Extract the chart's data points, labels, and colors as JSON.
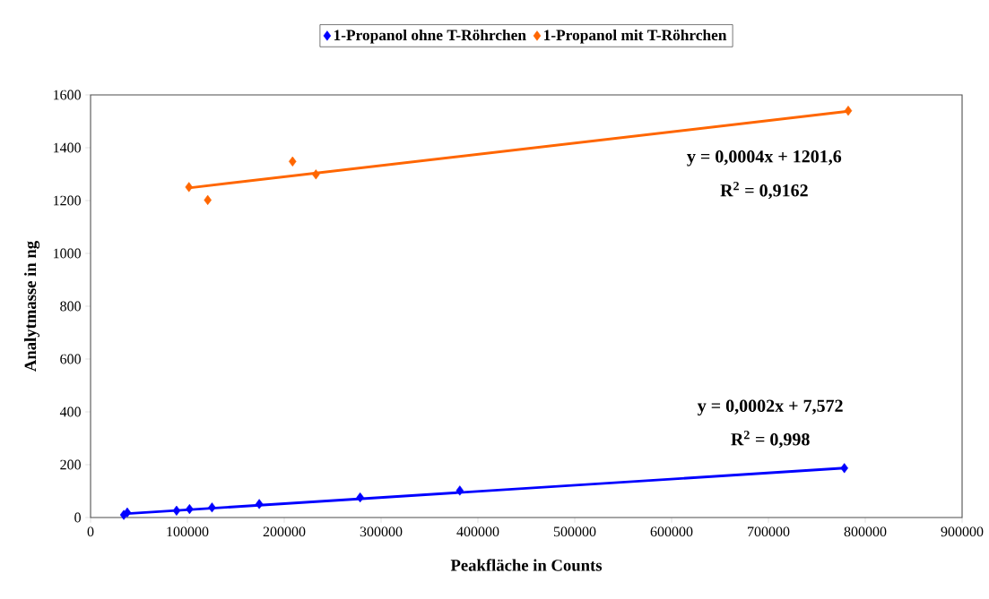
{
  "chart_data": {
    "type": "scatter",
    "xlabel": "Peakfläche in Counts",
    "ylabel": "Analytmasse in ng",
    "xlim": [
      0,
      900000
    ],
    "ylim": [
      0,
      1600
    ],
    "xticks": [
      0,
      100000,
      200000,
      300000,
      400000,
      500000,
      600000,
      700000,
      800000,
      900000
    ],
    "yticks": [
      0,
      200,
      400,
      600,
      800,
      1000,
      1200,
      1400,
      1600
    ],
    "grid": false,
    "legend": "top",
    "marker": "diamond",
    "series": [
      {
        "name": "1-Propanol ohne T-Röhrchen",
        "color": "#0000ff",
        "x": [
          34300,
          37900,
          88800,
          102200,
          125400,
          174200,
          278400,
          381300,
          778400
        ],
        "values": [
          10,
          19,
          26,
          32,
          38,
          51,
          76,
          102,
          187
        ]
      },
      {
        "name": "1-Propanol mit T-Röhrchen",
        "color": "#ff6600",
        "x": [
          101600,
          121000,
          208600,
          232700,
          782400
        ],
        "values": [
          1251,
          1202,
          1348,
          1299,
          1540
        ]
      },
      {
        "type": "line",
        "marker": "none",
        "color": "#0000ff",
        "x": [
          34300,
          778400
        ],
        "values": [
          14,
          187
        ]
      },
      {
        "type": "line",
        "marker": "none",
        "color": "#ff6600",
        "x": [
          101600,
          782400
        ],
        "values": [
          1248,
          1538
        ]
      }
    ],
    "annotations": [
      "y = 0,0004x + 1201,6",
      "R$^{2}$ = 0,9162",
      "y = 0,0002x + 7,572",
      "R$^{2}$ = 0,998"
    ]
  }
}
